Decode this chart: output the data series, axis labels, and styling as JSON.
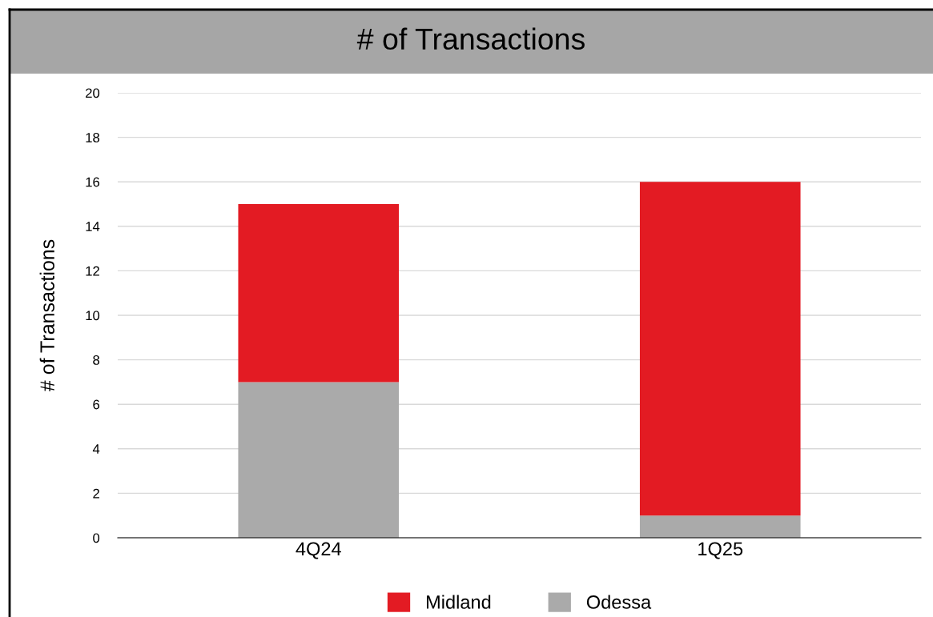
{
  "chart_data": {
    "type": "bar",
    "title": "# of Transactions",
    "ylabel": "# of Transactions",
    "categories": [
      "4Q24",
      "1Q25"
    ],
    "series": [
      {
        "name": "Odessa",
        "color": "#aaaaaa",
        "values": [
          7,
          1
        ]
      },
      {
        "name": "Midland",
        "color": "#e31b23",
        "values": [
          8,
          15
        ]
      }
    ],
    "stacked": true,
    "ylim": [
      0,
      20
    ],
    "yticks": [
      0,
      2,
      4,
      6,
      8,
      10,
      12,
      14,
      16,
      18,
      20
    ],
    "grid": "y",
    "legend": "bottom"
  }
}
